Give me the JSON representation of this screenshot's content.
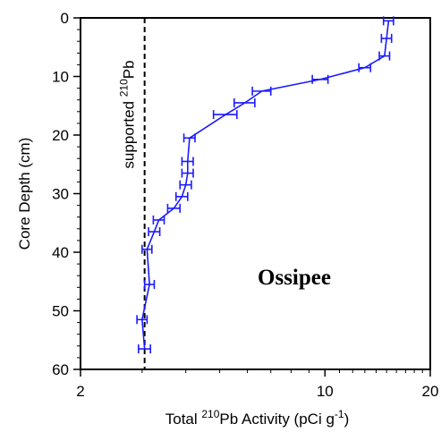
{
  "chart_data": {
    "type": "scatter",
    "xscale": "log",
    "xlim": [
      2,
      20
    ],
    "ylim": [
      0,
      60
    ],
    "y_inverted": true,
    "xticks": [
      2,
      10,
      20
    ],
    "xtick_labels": [
      "2",
      "10",
      "20"
    ],
    "yticks": [
      0,
      10,
      20,
      30,
      40,
      50,
      60
    ],
    "ytick_labels": [
      "0",
      "10",
      "20",
      "30",
      "40",
      "50",
      "60"
    ],
    "xlabel": {
      "pre": "Total ",
      "sup": "210",
      "mid": "Pb Activity (pCi g",
      "sup2": "-1",
      "post": ")"
    },
    "ylabel": "Core Depth (cm)",
    "annotation": "Ossipee",
    "supported_line": {
      "x": 3.05,
      "label_pre": "supported ",
      "label_sup": "210",
      "label_post": "Pb"
    },
    "series_color": "#1a1aff",
    "points": [
      {
        "x": 15.2,
        "y": 0.5,
        "err": 0.5
      },
      {
        "x": 15.0,
        "y": 3.5,
        "err": 0.5
      },
      {
        "x": 14.8,
        "y": 6.5,
        "err": 0.5
      },
      {
        "x": 13.0,
        "y": 8.5,
        "err": 0.5
      },
      {
        "x": 9.7,
        "y": 10.5,
        "err": 0.5
      },
      {
        "x": 6.6,
        "y": 12.5,
        "err": 0.4
      },
      {
        "x": 5.9,
        "y": 14.5,
        "err": 0.4
      },
      {
        "x": 5.2,
        "y": 16.5,
        "err": 0.4
      },
      {
        "x": 4.1,
        "y": 20.5,
        "err": 0.15
      },
      {
        "x": 4.05,
        "y": 24.5,
        "err": 0.15
      },
      {
        "x": 4.05,
        "y": 26.5,
        "err": 0.15
      },
      {
        "x": 4.0,
        "y": 28.5,
        "err": 0.15
      },
      {
        "x": 3.9,
        "y": 30.5,
        "err": 0.15
      },
      {
        "x": 3.7,
        "y": 32.5,
        "err": 0.15
      },
      {
        "x": 3.35,
        "y": 34.5,
        "err": 0.12
      },
      {
        "x": 3.25,
        "y": 36.5,
        "err": 0.12
      },
      {
        "x": 3.1,
        "y": 39.5,
        "err": 0.1
      },
      {
        "x": 3.15,
        "y": 45.5,
        "err": 0.1
      },
      {
        "x": 3.0,
        "y": 51.5,
        "err": 0.1
      },
      {
        "x": 3.05,
        "y": 56.5,
        "err": 0.12
      }
    ]
  }
}
